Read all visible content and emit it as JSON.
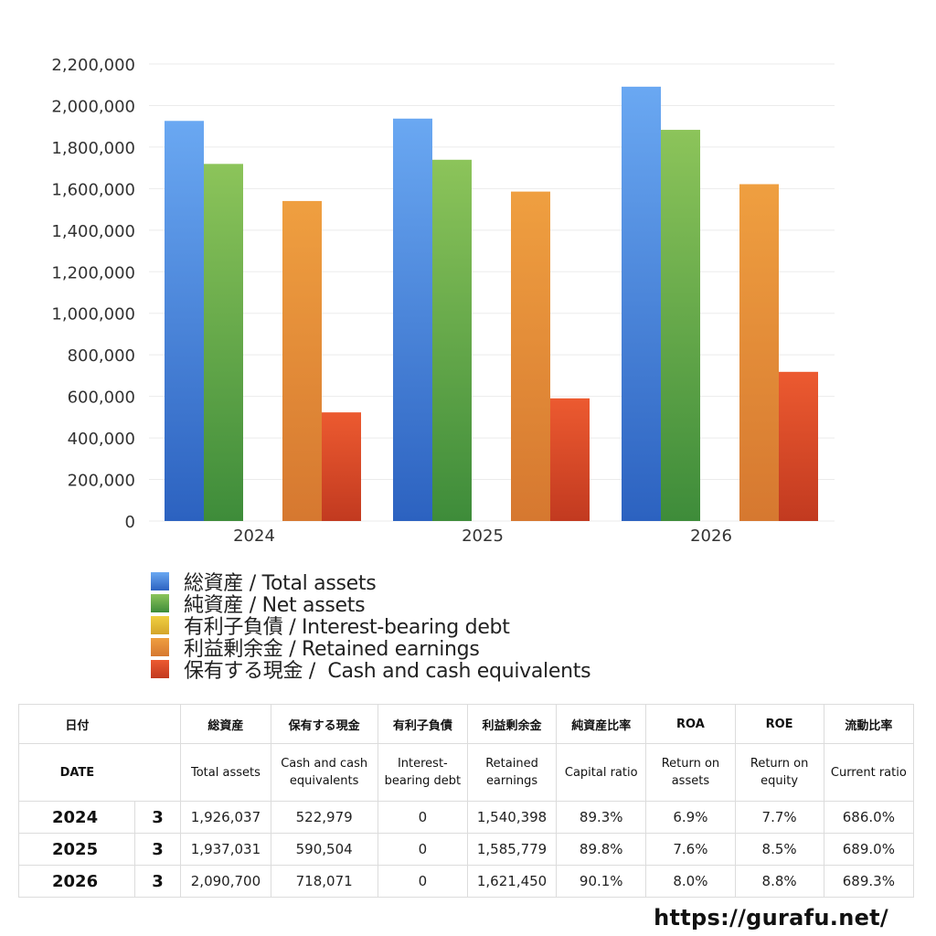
{
  "chart_data": {
    "type": "bar",
    "categories": [
      "2024",
      "2025",
      "2026"
    ],
    "ylim": [
      0,
      2200000
    ],
    "yticks": [
      0,
      200000,
      400000,
      600000,
      800000,
      1000000,
      1200000,
      1400000,
      1600000,
      1800000,
      2000000,
      2200000
    ],
    "ytick_labels": [
      "0",
      "200,000",
      "400,000",
      "600,000",
      "800,000",
      "1,000,000",
      "1,200,000",
      "1,400,000",
      "1,600,000",
      "1,800,000",
      "2,000,000",
      "2,200,000"
    ],
    "grid": true,
    "legend_position": "bottom",
    "series": [
      {
        "name": "総資産 / Total assets",
        "values": [
          1926037,
          1937031,
          2090700
        ],
        "color_top": "#6aa8f2",
        "color_bottom": "#2c62c0"
      },
      {
        "name": "純資産 / Net assets",
        "values": [
          1719000,
          1739000,
          1883000
        ],
        "color_top": "#8cc45a",
        "color_bottom": "#3e8c3a"
      },
      {
        "name": "有利子負債 / Interest-bearing debt",
        "values": [
          0,
          0,
          0
        ],
        "color_top": "#f0d040",
        "color_bottom": "#d4a52a"
      },
      {
        "name": "利益剰余金 / Retained earnings",
        "values": [
          1540398,
          1585779,
          1621450
        ],
        "color_top": "#ef9f40",
        "color_bottom": "#d67830"
      },
      {
        "name": "保有する現金 /  Cash and cash equivalents",
        "values": [
          522979,
          590504,
          718071
        ],
        "color_top": "#ec5a30",
        "color_bottom": "#c23a20"
      }
    ]
  },
  "table": {
    "header_jp": {
      "date": "日付",
      "total_assets": "総資産",
      "cash": "保有する現金",
      "debt": "有利子負債",
      "retained": "利益剰余金",
      "capital_ratio": "純資産比率",
      "roa": "ROA",
      "roe": "ROE",
      "current_ratio": "流動比率"
    },
    "header_en": {
      "date": "DATE",
      "total_assets": "Total assets",
      "cash": "Cash and cash equivalents",
      "debt": "Interest-bearing debt",
      "retained": "Retained earnings",
      "capital_ratio": "Capital ratio",
      "roa": "Return on assets",
      "roe": "Return on equity",
      "current_ratio": "Current ratio"
    },
    "rows": [
      {
        "year": "2024",
        "month": "3",
        "total_assets": "1,926,037",
        "cash": "522,979",
        "debt": "0",
        "retained": "1,540,398",
        "capital_ratio": "89.3%",
        "roa": "6.9%",
        "roe": "7.7%",
        "current_ratio": "686.0%"
      },
      {
        "year": "2025",
        "month": "3",
        "total_assets": "1,937,031",
        "cash": "590,504",
        "debt": "0",
        "retained": "1,585,779",
        "capital_ratio": "89.8%",
        "roa": "7.6%",
        "roe": "8.5%",
        "current_ratio": "689.0%"
      },
      {
        "year": "2026",
        "month": "3",
        "total_assets": "2,090,700",
        "cash": "718,071",
        "debt": "0",
        "retained": "1,621,450",
        "capital_ratio": "90.1%",
        "roa": "8.0%",
        "roe": "8.8%",
        "current_ratio": "689.3%"
      }
    ]
  },
  "footer": {
    "url": "https://gurafu.net/"
  }
}
